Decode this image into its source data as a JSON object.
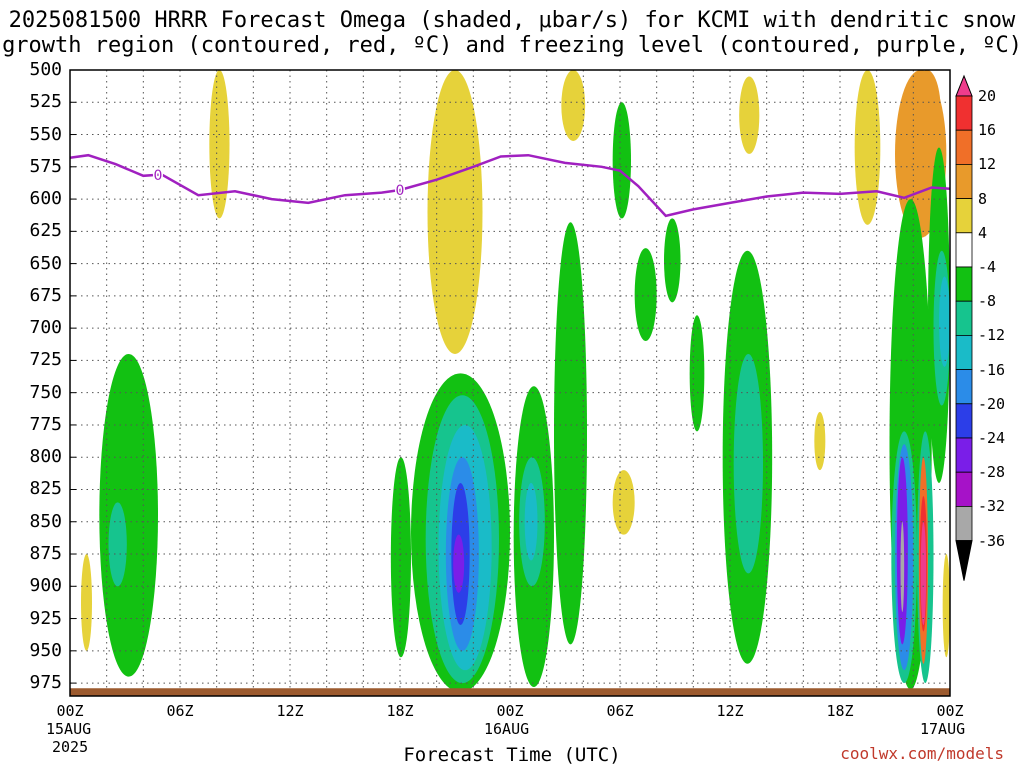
{
  "title_line1": "2025081500 HRRR Forecast Omega (shaded, μbar/s) for KCMI with dendritic snow",
  "title_line2": "growth region (contoured, red, ºC) and freezing level (contoured, purple, ºC)",
  "xlabel": "Forecast Time (UTC)",
  "credit": "coolwx.com/models",
  "date_labels": {
    "start_day": "15AUG",
    "start_year": "2025",
    "mid_day": "16AUG",
    "end_day": "17AUG"
  },
  "colors": {
    "freezing": "#a020c0",
    "terrain": "#9c5a2e",
    "grid": "#555555"
  },
  "chart_data": {
    "type": "heatmap",
    "title": "2025081500 HRRR Forecast Omega (shaded, μbar/s) for KCMI",
    "xlabel": "Forecast Time (UTC)",
    "ylabel": "",
    "x_ticks": [
      "00Z",
      "06Z",
      "12Z",
      "18Z",
      "00Z",
      "06Z",
      "12Z",
      "18Z",
      "00Z"
    ],
    "x_range_hours": [
      0,
      48
    ],
    "y_ticks": [
      500,
      525,
      550,
      575,
      600,
      625,
      650,
      675,
      700,
      725,
      750,
      775,
      800,
      825,
      850,
      875,
      900,
      925,
      950,
      975
    ],
    "y_range_mb": [
      500,
      985
    ],
    "colorbar": {
      "labels": [
        "20",
        "16",
        "12",
        "8",
        "4",
        "-4",
        "-8",
        "-12",
        "-16",
        "-20",
        "-24",
        "-28",
        "-32",
        "-36"
      ],
      "bins": [
        {
          "low": 20,
          "high": 99,
          "color": "#ef3c8c"
        },
        {
          "low": 16,
          "high": 20,
          "color": "#f03030"
        },
        {
          "low": 12,
          "high": 16,
          "color": "#f06f28"
        },
        {
          "low": 8,
          "high": 12,
          "color": "#e89a2b"
        },
        {
          "low": 4,
          "high": 8,
          "color": "#e6d23a"
        },
        {
          "low": -4,
          "high": 4,
          "color": "#ffffff"
        },
        {
          "low": -8,
          "high": -4,
          "color": "#12c112"
        },
        {
          "low": -12,
          "high": -8,
          "color": "#16c48e"
        },
        {
          "low": -16,
          "high": -12,
          "color": "#1abbc8"
        },
        {
          "low": -20,
          "high": -16,
          "color": "#2b8ce8"
        },
        {
          "low": -24,
          "high": -20,
          "color": "#2c3ee8"
        },
        {
          "low": -28,
          "high": -24,
          "color": "#7a1ee8"
        },
        {
          "low": -32,
          "high": -28,
          "color": "#a612c8"
        },
        {
          "low": -36,
          "high": -32,
          "color": "#a8a8a8"
        },
        {
          "low": -99,
          "high": -36,
          "color": "#000000"
        }
      ]
    },
    "freezing_level": {
      "label": "0",
      "hours": [
        0,
        1,
        2.5,
        4,
        5,
        7,
        9,
        11,
        13,
        15,
        17,
        18,
        20,
        22,
        23.5,
        25,
        27,
        29,
        30,
        31,
        32.5,
        34,
        36,
        38,
        40,
        42,
        44,
        45.5,
        47,
        48
      ],
      "pressure": [
        568,
        566,
        573,
        582,
        581,
        597,
        594,
        600,
        603,
        597,
        595,
        593,
        585,
        575,
        567,
        566,
        572,
        575,
        578,
        590,
        613,
        608,
        603,
        598,
        595,
        596,
        594,
        599,
        591,
        592
      ]
    },
    "omega_regions": [
      {
        "hours": [
          7.6,
          8.7
        ],
        "mb": [
          500,
          615
        ],
        "value": 5
      },
      {
        "hours": [
          19.5,
          22.5
        ],
        "mb": [
          500,
          720
        ],
        "value": 6
      },
      {
        "hours": [
          26.8,
          28.1
        ],
        "mb": [
          500,
          555
        ],
        "value": 5
      },
      {
        "hours": [
          36.5,
          37.6
        ],
        "mb": [
          505,
          565
        ],
        "value": 5
      },
      {
        "hours": [
          42.8,
          44.2
        ],
        "mb": [
          500,
          620
        ],
        "value": 6
      },
      {
        "hours": [
          45.0,
          47.8
        ],
        "mb": [
          500,
          630
        ],
        "value": 8
      },
      {
        "hours": [
          46.0,
          47.5
        ],
        "mb": [
          500,
          565
        ],
        "value": 10
      },
      {
        "hours": [
          29.6,
          30.8
        ],
        "mb": [
          810,
          860
        ],
        "value": 5
      },
      {
        "hours": [
          40.6,
          41.2
        ],
        "mb": [
          765,
          810
        ],
        "value": 6
      },
      {
        "hours": [
          37.0,
          37.5
        ],
        "mb": [
          775,
          830
        ],
        "value": 5
      },
      {
        "hours": [
          47.6,
          48.0
        ],
        "mb": [
          875,
          955
        ],
        "value": 5
      },
      {
        "hours": [
          0.6,
          1.2
        ],
        "mb": [
          875,
          950
        ],
        "value": 5
      },
      {
        "hours": [
          1.6,
          4.8
        ],
        "mb": [
          720,
          970
        ],
        "value": -6
      },
      {
        "hours": [
          2.1,
          3.1
        ],
        "mb": [
          835,
          900
        ],
        "value": -9
      },
      {
        "hours": [
          18.6,
          24.0
        ],
        "mb": [
          735,
          982
        ],
        "value": -6
      },
      {
        "hours": [
          19.4,
          23.4
        ],
        "mb": [
          752,
          975
        ],
        "value": -10
      },
      {
        "hours": [
          20.1,
          23.0
        ],
        "mb": [
          775,
          965
        ],
        "value": -14
      },
      {
        "hours": [
          20.5,
          22.3
        ],
        "mb": [
          800,
          950
        ],
        "value": -18
      },
      {
        "hours": [
          20.8,
          21.8
        ],
        "mb": [
          820,
          930
        ],
        "value": -22
      },
      {
        "hours": [
          20.9,
          21.5
        ],
        "mb": [
          860,
          905
        ],
        "value": -26
      },
      {
        "hours": [
          24.2,
          26.4
        ],
        "mb": [
          745,
          978
        ],
        "value": -6
      },
      {
        "hours": [
          24.5,
          25.9
        ],
        "mb": [
          800,
          900
        ],
        "value": -10
      },
      {
        "hours": [
          24.8,
          25.5
        ],
        "mb": [
          820,
          880
        ],
        "value": -14
      },
      {
        "hours": [
          26.4,
          28.2
        ],
        "mb": [
          618,
          945
        ],
        "value": -6
      },
      {
        "hours": [
          29.6,
          30.6
        ],
        "mb": [
          525,
          615
        ],
        "value": -6
      },
      {
        "hours": [
          30.8,
          32.0
        ],
        "mb": [
          638,
          710
        ],
        "value": -6
      },
      {
        "hours": [
          32.4,
          33.3
        ],
        "mb": [
          615,
          680
        ],
        "value": -6
      },
      {
        "hours": [
          33.8,
          34.6
        ],
        "mb": [
          690,
          780
        ],
        "value": -6
      },
      {
        "hours": [
          35.6,
          38.3
        ],
        "mb": [
          640,
          960
        ],
        "value": -6
      },
      {
        "hours": [
          36.2,
          37.8
        ],
        "mb": [
          720,
          890
        ],
        "value": -10
      },
      {
        "hours": [
          44.7,
          47.0
        ],
        "mb": [
          600,
          980
        ],
        "value": -6
      },
      {
        "hours": [
          44.8,
          46.2
        ],
        "mb": [
          780,
          975
        ],
        "value": -12
      },
      {
        "hours": [
          45.0,
          46.0
        ],
        "mb": [
          790,
          965
        ],
        "value": -20
      },
      {
        "hours": [
          45.1,
          45.7
        ],
        "mb": [
          800,
          945
        ],
        "value": -26
      },
      {
        "hours": [
          45.3,
          45.5
        ],
        "mb": [
          850,
          920
        ],
        "value": -34
      },
      {
        "hours": [
          46.2,
          47.1
        ],
        "mb": [
          780,
          975
        ],
        "value": -10
      },
      {
        "hours": [
          46.3,
          46.8
        ],
        "mb": [
          800,
          960
        ],
        "value": 12
      },
      {
        "hours": [
          46.35,
          46.75
        ],
        "mb": [
          830,
          935
        ],
        "value": 18
      },
      {
        "hours": [
          46.4,
          46.7
        ],
        "mb": [
          850,
          930
        ],
        "value": 22
      },
      {
        "hours": [
          46.8,
          48.0
        ],
        "mb": [
          560,
          820
        ],
        "value": -6
      },
      {
        "hours": [
          47.1,
          48.0
        ],
        "mb": [
          640,
          760
        ],
        "value": -10
      },
      {
        "hours": [
          47.4,
          48.0
        ],
        "mb": [
          660,
          730
        ],
        "value": -14
      },
      {
        "hours": [
          17.5,
          18.6
        ],
        "mb": [
          800,
          955
        ],
        "value": -6
      }
    ]
  }
}
